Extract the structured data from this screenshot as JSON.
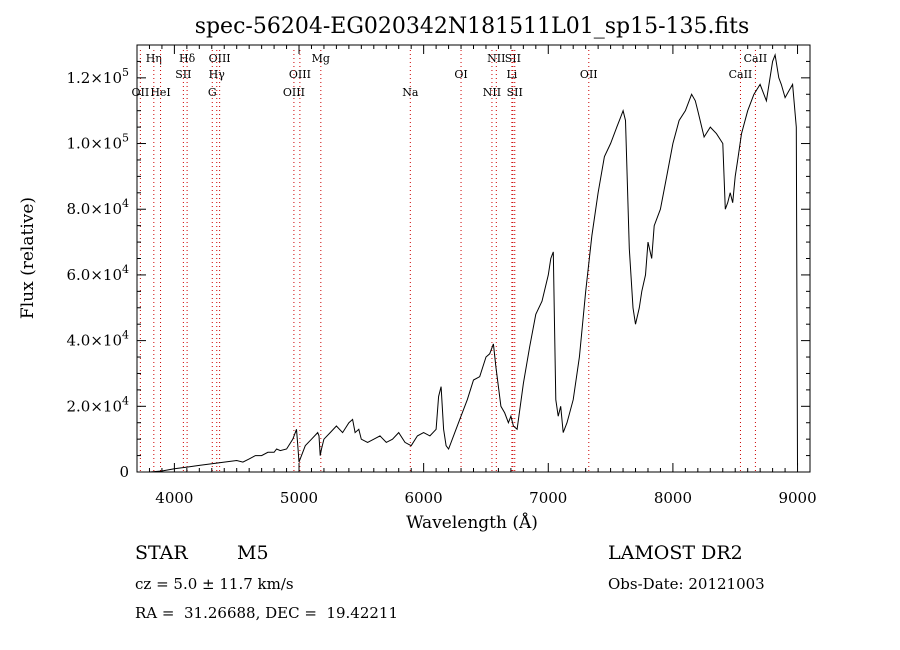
{
  "chart_data": {
    "type": "line",
    "title": "spec-56204-EG020342N181511L01_sp15-135.fits",
    "xlabel": "Wavelength (Å)",
    "ylabel": "Flux (relative)",
    "xlim": [
      3700,
      9100
    ],
    "ylim": [
      0,
      130000
    ],
    "xticks": [
      {
        "v": 4000,
        "label": "4000"
      },
      {
        "v": 5000,
        "label": "5000"
      },
      {
        "v": 6000,
        "label": "6000"
      },
      {
        "v": 7000,
        "label": "7000"
      },
      {
        "v": 8000,
        "label": "8000"
      },
      {
        "v": 9000,
        "label": "9000"
      }
    ],
    "yticks": [
      {
        "v": 0,
        "m": "0",
        "e": ""
      },
      {
        "v": 20000,
        "m": "2.0×10",
        "e": "4"
      },
      {
        "v": 40000,
        "m": "4.0×10",
        "e": "4"
      },
      {
        "v": 60000,
        "m": "6.0×10",
        "e": "4"
      },
      {
        "v": 80000,
        "m": "8.0×10",
        "e": "4"
      },
      {
        "v": 100000,
        "m": "1.0×10",
        "e": "5"
      },
      {
        "v": 120000,
        "m": "1.2×10",
        "e": "5"
      }
    ],
    "lines": [
      {
        "label": "Hη",
        "w": 3835,
        "row": 1
      },
      {
        "label": "OII",
        "w": 3727,
        "row": 3
      },
      {
        "label": "HeI",
        "w": 3889,
        "row": 3
      },
      {
        "label": "Hδ",
        "w": 4102,
        "row": 1
      },
      {
        "label": "SII",
        "w": 4072,
        "row": 2
      },
      {
        "label": "OIII",
        "w": 4363,
        "row": 1
      },
      {
        "label": "Hγ",
        "w": 4340,
        "row": 2
      },
      {
        "label": "G",
        "w": 4304,
        "row": 3
      },
      {
        "label": "Mg",
        "w": 5175,
        "row": 1
      },
      {
        "label": "OIII",
        "w": 5007,
        "row": 2
      },
      {
        "label": "OIII",
        "w": 4959,
        "row": 3
      },
      {
        "label": "Na",
        "w": 5893,
        "row": 3
      },
      {
        "label": "OI",
        "w": 6300,
        "row": 2
      },
      {
        "label": "NII",
        "w": 6583,
        "row": 1
      },
      {
        "label": "SII",
        "w": 6716,
        "row": 1
      },
      {
        "label": "Li",
        "w": 6708,
        "row": 2
      },
      {
        "label": "NII",
        "w": 6548,
        "row": 3
      },
      {
        "label": "SII",
        "w": 6731,
        "row": 3
      },
      {
        "label": "OII",
        "w": 7325,
        "row": 2
      },
      {
        "label": "CaII",
        "w": 8662,
        "row": 1
      },
      {
        "label": "CaII",
        "w": 8542,
        "row": 2
      }
    ],
    "series": [
      {
        "x": [
          3700,
          3800,
          3900,
          4000,
          4100,
          4200,
          4300,
          4400,
          4500,
          4550,
          4600,
          4650,
          4700,
          4750,
          4800,
          4820,
          4850,
          4900,
          4950,
          4970,
          4980,
          4990,
          5000,
          5020,
          5050,
          5100,
          5150,
          5160,
          5170,
          5180,
          5200,
          5250,
          5300,
          5350,
          5400,
          5430,
          5450,
          5480,
          5500,
          5550,
          5600,
          5650,
          5700,
          5750,
          5800,
          5850,
          5900,
          5950,
          6000,
          6050,
          6100,
          6120,
          6140,
          6160,
          6180,
          6200,
          6250,
          6300,
          6350,
          6400,
          6450,
          6500,
          6530,
          6560,
          6580,
          6600,
          6620,
          6650,
          6680,
          6700,
          6720,
          6750,
          6800,
          6850,
          6900,
          6950,
          7000,
          7020,
          7040,
          7050,
          7060,
          7080,
          7100,
          7120,
          7150,
          7200,
          7250,
          7300,
          7350,
          7400,
          7450,
          7500,
          7550,
          7580,
          7600,
          7620,
          7650,
          7680,
          7700,
          7730,
          7750,
          7780,
          7800,
          7830,
          7850,
          7900,
          7950,
          8000,
          8050,
          8100,
          8150,
          8180,
          8200,
          8250,
          8300,
          8350,
          8400,
          8420,
          8440,
          8460,
          8480,
          8500,
          8520,
          8550,
          8600,
          8650,
          8700,
          8750,
          8800,
          8820,
          8850,
          8870,
          8900,
          8930,
          8960,
          8990,
          9000
        ],
        "y": [
          0,
          0,
          300,
          1000,
          1500,
          2000,
          2500,
          3000,
          3500,
          3000,
          4000,
          5000,
          5000,
          6000,
          6000,
          7000,
          6500,
          7000,
          10000,
          12000,
          13000,
          8000,
          3000,
          5000,
          8000,
          10000,
          12000,
          11000,
          5000,
          7000,
          10000,
          12000,
          14000,
          12000,
          15000,
          16000,
          12000,
          13000,
          10000,
          9000,
          10000,
          11000,
          9000,
          10000,
          12000,
          9000,
          8000,
          11000,
          12000,
          11000,
          13000,
          23000,
          26000,
          13000,
          8000,
          7000,
          12000,
          17000,
          22000,
          28000,
          29000,
          35000,
          36000,
          39000,
          32000,
          26000,
          20000,
          18000,
          15000,
          17000,
          14000,
          13000,
          27000,
          38000,
          48000,
          52000,
          60000,
          65000,
          67000,
          45000,
          22000,
          17000,
          20000,
          12000,
          15000,
          22000,
          35000,
          55000,
          72000,
          85000,
          96000,
          100000,
          105000,
          108000,
          110000,
          107000,
          68000,
          50000,
          45000,
          50000,
          55000,
          60000,
          70000,
          65000,
          75000,
          80000,
          90000,
          100000,
          107000,
          110000,
          115000,
          113000,
          110000,
          102000,
          105000,
          103000,
          100000,
          80000,
          82000,
          85000,
          82000,
          90000,
          95000,
          103000,
          110000,
          115000,
          118000,
          113000,
          125000,
          127000,
          120000,
          118000,
          114000,
          116000,
          118000,
          105000,
          2000
        ]
      }
    ]
  },
  "info": {
    "object_type": "STAR",
    "subclass": "M5",
    "survey": "LAMOST DR2",
    "redshift": "cz = 5.0 ± 11.7 km/s",
    "obs_date": "Obs-Date: 20121003",
    "coords": "RA =  31.26688, DEC =  19.42211"
  }
}
